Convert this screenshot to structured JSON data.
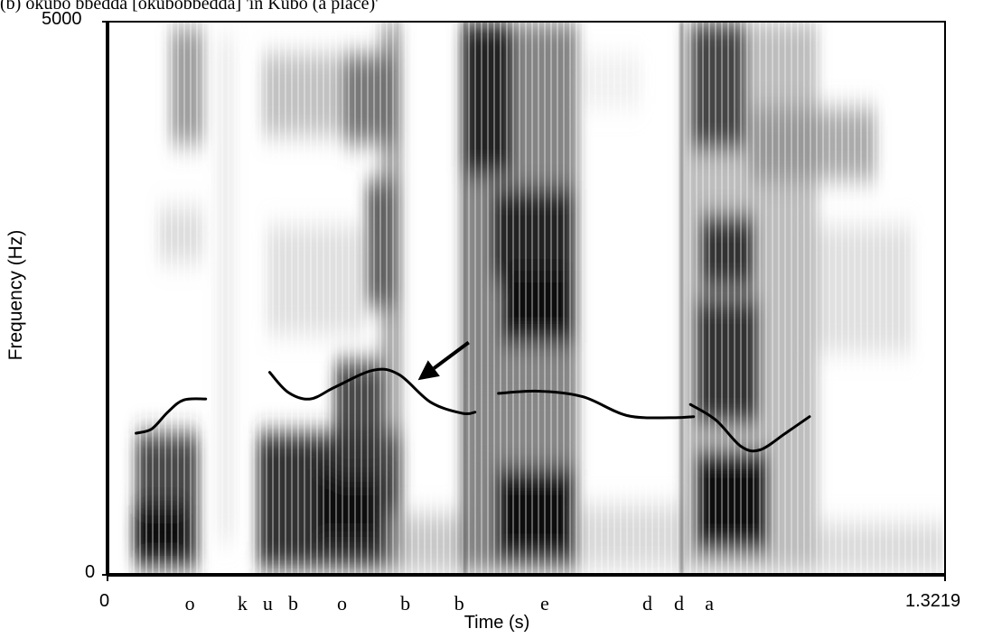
{
  "caption": "(b) okubo bbedda [okúbobbédda] 'in Kubo (a place)'",
  "chart_data": {
    "type": "spectrogram",
    "xlabel": "Time (s)",
    "ylabel": "Frequency (Hz)",
    "xlim": [
      0,
      1.3219
    ],
    "ylim": [
      0,
      5000
    ],
    "x_tick_labels": [
      "0",
      "1.3219"
    ],
    "y_tick_labels": [
      "0",
      "5000"
    ],
    "segments": [
      {
        "label": "o",
        "time": 0.13
      },
      {
        "label": "k",
        "time": 0.213
      },
      {
        "label": "u",
        "time": 0.253
      },
      {
        "label": "b",
        "time": 0.293
      },
      {
        "label": "o",
        "time": 0.37
      },
      {
        "label": "b",
        "time": 0.47
      },
      {
        "label": "b",
        "time": 0.555
      },
      {
        "label": "e",
        "time": 0.69
      },
      {
        "label": "d",
        "time": 0.852
      },
      {
        "label": "d",
        "time": 0.902
      },
      {
        "label": "a",
        "time": 0.95
      }
    ],
    "pitch_contours": [
      [
        [
          0.045,
          1280
        ],
        [
          0.07,
          1320
        ],
        [
          0.095,
          1470
        ],
        [
          0.12,
          1580
        ],
        [
          0.155,
          1590
        ]
      ],
      [
        [
          0.256,
          1830
        ],
        [
          0.285,
          1650
        ],
        [
          0.32,
          1590
        ],
        [
          0.36,
          1700
        ],
        [
          0.42,
          1850
        ],
        [
          0.46,
          1810
        ],
        [
          0.51,
          1560
        ],
        [
          0.56,
          1460
        ],
        [
          0.58,
          1470
        ]
      ],
      [
        [
          0.617,
          1640
        ],
        [
          0.68,
          1660
        ],
        [
          0.75,
          1610
        ],
        [
          0.82,
          1440
        ],
        [
          0.89,
          1420
        ],
        [
          0.925,
          1430
        ]
      ],
      [
        [
          0.92,
          1540
        ],
        [
          0.96,
          1400
        ],
        [
          1.0,
          1160
        ],
        [
          1.03,
          1130
        ],
        [
          1.07,
          1280
        ],
        [
          1.108,
          1430
        ]
      ]
    ],
    "annotation": {
      "type": "arrow",
      "from": [
        0.57,
        2100
      ],
      "to": [
        0.49,
        1760
      ]
    }
  }
}
